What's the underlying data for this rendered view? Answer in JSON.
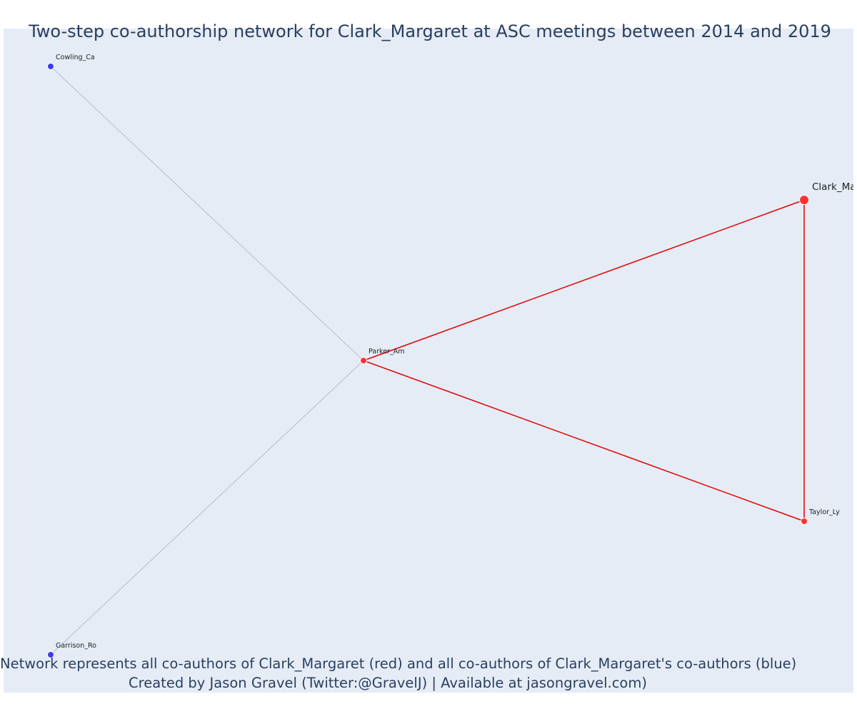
{
  "title": "Two-step co-authorship network for Clark_Margaret at ASC meetings between 2014 and 2019",
  "captions": [
    "Network represents all co-authors of Clark_Margaret (red) and all co-authors of Clark_Margaret's co-authors (blue)",
    "Created by Jason Gravel (Twitter:@GravelJ) | Available at jasongravel.com)"
  ],
  "colors": {
    "plot_bg": "#e5ecf6",
    "red_node": "#ff3030",
    "blue_node": "#3b3bf0",
    "red_edge": "#e00000",
    "grey_edge": "#b6bcc8",
    "text": "#2a3f5f"
  },
  "graph": {
    "nodes": [
      {
        "id": "Cowling_Ca",
        "label": "Cowling_Ca",
        "group": "blue",
        "role": "co-author of co-author"
      },
      {
        "id": "Clark_Margaret",
        "label": "Clark_Ma",
        "group": "red",
        "role": "focal"
      },
      {
        "id": "Parker_Am",
        "label": "Parker_Am",
        "group": "red",
        "role": "co-author"
      },
      {
        "id": "Taylor_Ly",
        "label": "Taylor_Ly",
        "group": "red",
        "role": "co-author"
      },
      {
        "id": "Garrison_Ro",
        "label": "Garrison_Ro",
        "group": "blue",
        "role": "co-author of co-author"
      }
    ],
    "edges": [
      {
        "source": "Cowling_Ca",
        "target": "Parker_Am",
        "group": "grey"
      },
      {
        "source": "Garrison_Ro",
        "target": "Parker_Am",
        "group": "grey"
      },
      {
        "source": "Parker_Am",
        "target": "Clark_Margaret",
        "group": "red"
      },
      {
        "source": "Parker_Am",
        "target": "Taylor_Ly",
        "group": "red"
      },
      {
        "source": "Clark_Margaret",
        "target": "Taylor_Ly",
        "group": "red"
      }
    ]
  }
}
